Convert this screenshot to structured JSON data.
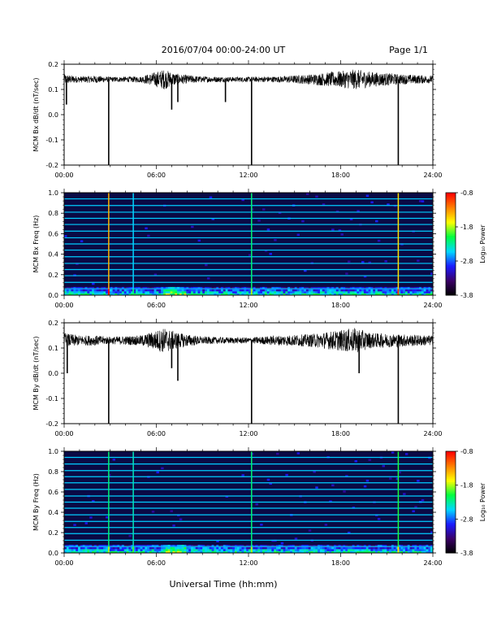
{
  "header": {
    "title": "2016/07/04  00:00-24:00 UT",
    "page": "Page 1/1"
  },
  "footer": {
    "xlabel": "Universal Time (hh:mm)"
  },
  "colors": {
    "trace": "#000000",
    "spectrogram_background": "#0a0a45",
    "colormap": [
      "#000000",
      "#3a0066",
      "#1a1aff",
      "#00d8ff",
      "#00ff40",
      "#ffff00",
      "#ff8000",
      "#ff0000"
    ]
  },
  "chart_data": [
    {
      "type": "line",
      "ylabel": "MCM Bx dB/dt (nT/sec)",
      "ylim": [
        -0.2,
        0.2
      ],
      "yticks": [
        -0.2,
        -0.1,
        0.0,
        0.1,
        0.2
      ],
      "ytick_labels": [
        "-0.2",
        "-0.1",
        "0.0",
        "0.1",
        "0.2"
      ],
      "xlim": [
        0,
        24
      ],
      "xtick_labels": [
        "00:00",
        "06:00",
        "12:00",
        "18:00",
        "24:00"
      ],
      "baseline": 0.14,
      "noise_envelope": [
        [
          0,
          0.02
        ],
        [
          1,
          0.012
        ],
        [
          2,
          0.015
        ],
        [
          3,
          0.01
        ],
        [
          5,
          0.012
        ],
        [
          6.5,
          0.04
        ],
        [
          7.5,
          0.02
        ],
        [
          9,
          0.012
        ],
        [
          11,
          0.01
        ],
        [
          12,
          0.01
        ],
        [
          14,
          0.012
        ],
        [
          16,
          0.02
        ],
        [
          19,
          0.04
        ],
        [
          20,
          0.03
        ],
        [
          22,
          0.02
        ],
        [
          24,
          0.015
        ]
      ],
      "spikes": [
        {
          "x": 2.9,
          "y": -0.2
        },
        {
          "x": 12.2,
          "y": -0.2
        },
        {
          "x": 21.75,
          "y": -0.2
        },
        {
          "x": 0.15,
          "y": 0.04
        },
        {
          "x": 7.0,
          "y": 0.02
        },
        {
          "x": 7.4,
          "y": 0.05
        },
        {
          "x": 10.5,
          "y": 0.05
        }
      ]
    },
    {
      "type": "heatmap",
      "ylabel": "MCM Bx Freq (Hz)",
      "ylim": [
        0,
        1
      ],
      "yticks": [
        0.0,
        0.2,
        0.4,
        0.6,
        0.8,
        1.0
      ],
      "ytick_labels": [
        "0.0",
        "0.2",
        "0.4",
        "0.6",
        "0.8",
        "1.0"
      ],
      "xlim": [
        0,
        24
      ],
      "xtick_labels": [
        "00:00",
        "06:00",
        "12:00",
        "18:00",
        "24:00"
      ],
      "harmonic_lines_hz": [
        0.063,
        0.125,
        0.19,
        0.25,
        0.31,
        0.375,
        0.44,
        0.5,
        0.56,
        0.625,
        0.69,
        0.75,
        0.81,
        0.875,
        0.94
      ],
      "vertical_bursts": [
        {
          "x": 2.9,
          "level": -0.8
        },
        {
          "x": 4.5,
          "level": -2.2
        },
        {
          "x": 12.2,
          "level": -1.8
        },
        {
          "x": 21.75,
          "level": -1.0
        }
      ],
      "colorbar": {
        "label": "Log₁₀ Power",
        "range": [
          -3.8,
          -0.8
        ],
        "ticks": [
          -0.8,
          -1.8,
          -2.8,
          -3.8
        ],
        "tick_labels": [
          "-0.8",
          "-1.8",
          "-2.8",
          "-3.8"
        ]
      }
    },
    {
      "type": "line",
      "ylabel": "MCM By dB/dt (nT/sec)",
      "ylim": [
        -0.2,
        0.2
      ],
      "yticks": [
        -0.2,
        -0.1,
        0.0,
        0.1,
        0.2
      ],
      "ytick_labels": [
        "-0.2",
        "-0.1",
        "0.0",
        "0.1",
        "0.2"
      ],
      "xlim": [
        0,
        24
      ],
      "xtick_labels": [
        "00:00",
        "06:00",
        "12:00",
        "18:00",
        "24:00"
      ],
      "baseline": 0.13,
      "noise_envelope": [
        [
          0,
          0.03
        ],
        [
          1,
          0.02
        ],
        [
          2,
          0.02
        ],
        [
          3,
          0.015
        ],
        [
          5,
          0.02
        ],
        [
          6.5,
          0.05
        ],
        [
          7.5,
          0.03
        ],
        [
          9,
          0.015
        ],
        [
          11,
          0.012
        ],
        [
          12,
          0.012
        ],
        [
          14,
          0.02
        ],
        [
          16,
          0.025
        ],
        [
          19,
          0.05
        ],
        [
          20,
          0.03
        ],
        [
          22,
          0.025
        ],
        [
          24,
          0.02
        ]
      ],
      "spikes": [
        {
          "x": 2.9,
          "y": -0.2
        },
        {
          "x": 12.2,
          "y": -0.2
        },
        {
          "x": 21.75,
          "y": -0.2
        },
        {
          "x": 0.2,
          "y": 0.0
        },
        {
          "x": 7.0,
          "y": 0.02
        },
        {
          "x": 7.4,
          "y": -0.03
        },
        {
          "x": 19.2,
          "y": 0.0
        }
      ]
    },
    {
      "type": "heatmap",
      "ylabel": "MCM By Freq (Hz)",
      "ylim": [
        0,
        1
      ],
      "yticks": [
        0.0,
        0.2,
        0.4,
        0.6,
        0.8,
        1.0
      ],
      "ytick_labels": [
        "0.0",
        "0.2",
        "0.4",
        "0.6",
        "0.8",
        "1.0"
      ],
      "xlim": [
        0,
        24
      ],
      "xtick_labels": [
        "00:00",
        "06:00",
        "12:00",
        "18:00",
        "24:00"
      ],
      "harmonic_lines_hz": [
        0.063,
        0.125,
        0.19,
        0.25,
        0.31,
        0.375,
        0.44,
        0.5,
        0.56,
        0.625,
        0.69,
        0.75,
        0.81,
        0.875,
        0.94
      ],
      "vertical_bursts": [
        {
          "x": 2.9,
          "level": -1.8
        },
        {
          "x": 4.5,
          "level": -2.0
        },
        {
          "x": 12.2,
          "level": -1.8
        },
        {
          "x": 21.75,
          "level": -1.6
        }
      ],
      "colorbar": {
        "label": "Log₁₀ Power",
        "range": [
          -3.8,
          -0.8
        ],
        "ticks": [
          -0.8,
          -1.8,
          -2.8,
          -3.8
        ],
        "tick_labels": [
          "-0.8",
          "-1.8",
          "-2.8",
          "-3.8"
        ]
      }
    }
  ]
}
